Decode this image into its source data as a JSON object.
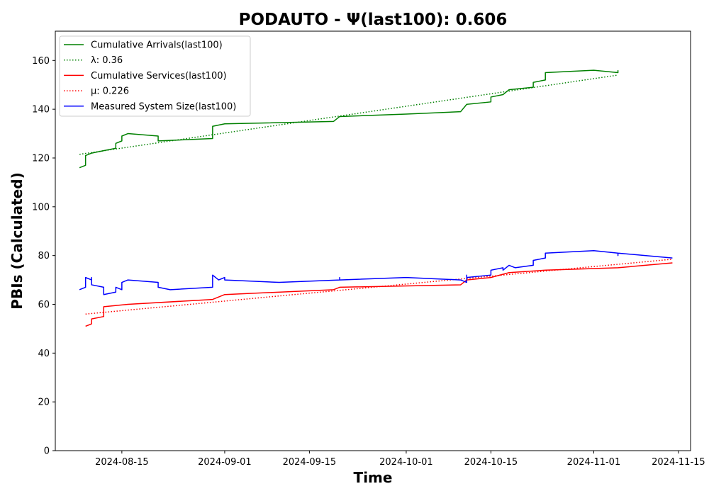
{
  "chart_data": {
    "type": "line",
    "title": "PODAUTO -  Ψ(last100): 0.606",
    "xlabel": "Time",
    "ylabel": "PBIs (Calculated)",
    "x_axis_type": "date",
    "xlim": [
      "2024-08-04",
      "2024-11-17"
    ],
    "ylim": [
      0,
      172
    ],
    "x_ticks": [
      "2024-08-15",
      "2024-09-01",
      "2024-09-15",
      "2024-10-01",
      "2024-10-15",
      "2024-11-01",
      "2024-11-15"
    ],
    "y_ticks": [
      0,
      20,
      40,
      60,
      80,
      100,
      120,
      140,
      160
    ],
    "grid": false,
    "legend_position": "top-left",
    "series": [
      {
        "name": "Cumulative Arrivals(last100)",
        "color": "#008000",
        "style": "solid",
        "points": [
          [
            "2024-08-08",
            116
          ],
          [
            "2024-08-09",
            117
          ],
          [
            "2024-08-09",
            121
          ],
          [
            "2024-08-10",
            122
          ],
          [
            "2024-08-12",
            123
          ],
          [
            "2024-08-14",
            124
          ],
          [
            "2024-08-14",
            126
          ],
          [
            "2024-08-15",
            127
          ],
          [
            "2024-08-15",
            129
          ],
          [
            "2024-08-16",
            130
          ],
          [
            "2024-08-21",
            129
          ],
          [
            "2024-08-21",
            127
          ],
          [
            "2024-08-30",
            128
          ],
          [
            "2024-08-30",
            133
          ],
          [
            "2024-09-01",
            134
          ],
          [
            "2024-09-19",
            135
          ],
          [
            "2024-09-20",
            137
          ],
          [
            "2024-10-01",
            138
          ],
          [
            "2024-10-10",
            139
          ],
          [
            "2024-10-11",
            142
          ],
          [
            "2024-10-15",
            143
          ],
          [
            "2024-10-15",
            145
          ],
          [
            "2024-10-17",
            146
          ],
          [
            "2024-10-18",
            148
          ],
          [
            "2024-10-22",
            149
          ],
          [
            "2024-10-22",
            151
          ],
          [
            "2024-10-24",
            152
          ],
          [
            "2024-10-24",
            155
          ],
          [
            "2024-11-01",
            156
          ],
          [
            "2024-11-05",
            155
          ],
          [
            "2024-11-05",
            156
          ]
        ]
      },
      {
        "name": "λ: 0.36",
        "color": "#008000",
        "style": "dotted",
        "points": [
          [
            "2024-08-08",
            121.5
          ],
          [
            "2024-11-05",
            154
          ]
        ]
      },
      {
        "name": "Cumulative Services(last100)",
        "color": "#ff0000",
        "style": "solid",
        "points": [
          [
            "2024-08-09",
            51
          ],
          [
            "2024-08-10",
            52
          ],
          [
            "2024-08-10",
            54
          ],
          [
            "2024-08-12",
            55
          ],
          [
            "2024-08-12",
            59
          ],
          [
            "2024-08-16",
            60
          ],
          [
            "2024-08-30",
            62
          ],
          [
            "2024-09-01",
            64
          ],
          [
            "2024-09-19",
            66
          ],
          [
            "2024-09-20",
            67
          ],
          [
            "2024-10-10",
            68
          ],
          [
            "2024-10-11",
            70
          ],
          [
            "2024-10-15",
            71
          ],
          [
            "2024-10-18",
            73
          ],
          [
            "2024-10-24",
            74
          ],
          [
            "2024-11-05",
            75
          ],
          [
            "2024-11-14",
            77
          ]
        ]
      },
      {
        "name": "μ: 0.226",
        "color": "#ff0000",
        "style": "dotted",
        "points": [
          [
            "2024-08-09",
            56
          ],
          [
            "2024-11-14",
            78.5
          ]
        ]
      },
      {
        "name": "Measured System Size(last100)",
        "color": "#0000ff",
        "style": "solid",
        "points": [
          [
            "2024-08-08",
            66
          ],
          [
            "2024-08-09",
            67
          ],
          [
            "2024-08-09",
            71
          ],
          [
            "2024-08-10",
            70
          ],
          [
            "2024-08-10",
            71
          ],
          [
            "2024-08-10",
            68
          ],
          [
            "2024-08-12",
            67
          ],
          [
            "2024-08-12",
            64
          ],
          [
            "2024-08-14",
            65
          ],
          [
            "2024-08-14",
            67
          ],
          [
            "2024-08-15",
            66
          ],
          [
            "2024-08-15",
            69
          ],
          [
            "2024-08-16",
            70
          ],
          [
            "2024-08-21",
            69
          ],
          [
            "2024-08-21",
            67
          ],
          [
            "2024-08-23",
            66
          ],
          [
            "2024-08-30",
            67
          ],
          [
            "2024-08-30",
            72
          ],
          [
            "2024-08-31",
            70
          ],
          [
            "2024-09-01",
            71
          ],
          [
            "2024-09-01",
            70
          ],
          [
            "2024-09-10",
            69
          ],
          [
            "2024-09-20",
            70
          ],
          [
            "2024-09-20",
            71
          ],
          [
            "2024-09-20",
            70
          ],
          [
            "2024-10-01",
            71
          ],
          [
            "2024-10-10",
            70
          ],
          [
            "2024-10-11",
            69
          ],
          [
            "2024-10-11",
            72
          ],
          [
            "2024-10-11",
            71
          ],
          [
            "2024-10-15",
            72
          ],
          [
            "2024-10-15",
            74
          ],
          [
            "2024-10-17",
            75
          ],
          [
            "2024-10-17",
            74
          ],
          [
            "2024-10-18",
            76
          ],
          [
            "2024-10-19",
            75
          ],
          [
            "2024-10-22",
            76
          ],
          [
            "2024-10-22",
            78
          ],
          [
            "2024-10-24",
            79
          ],
          [
            "2024-10-24",
            81
          ],
          [
            "2024-11-01",
            82
          ],
          [
            "2024-11-05",
            81
          ],
          [
            "2024-11-05",
            80
          ],
          [
            "2024-11-05",
            81
          ],
          [
            "2024-11-14",
            79
          ]
        ]
      }
    ]
  }
}
